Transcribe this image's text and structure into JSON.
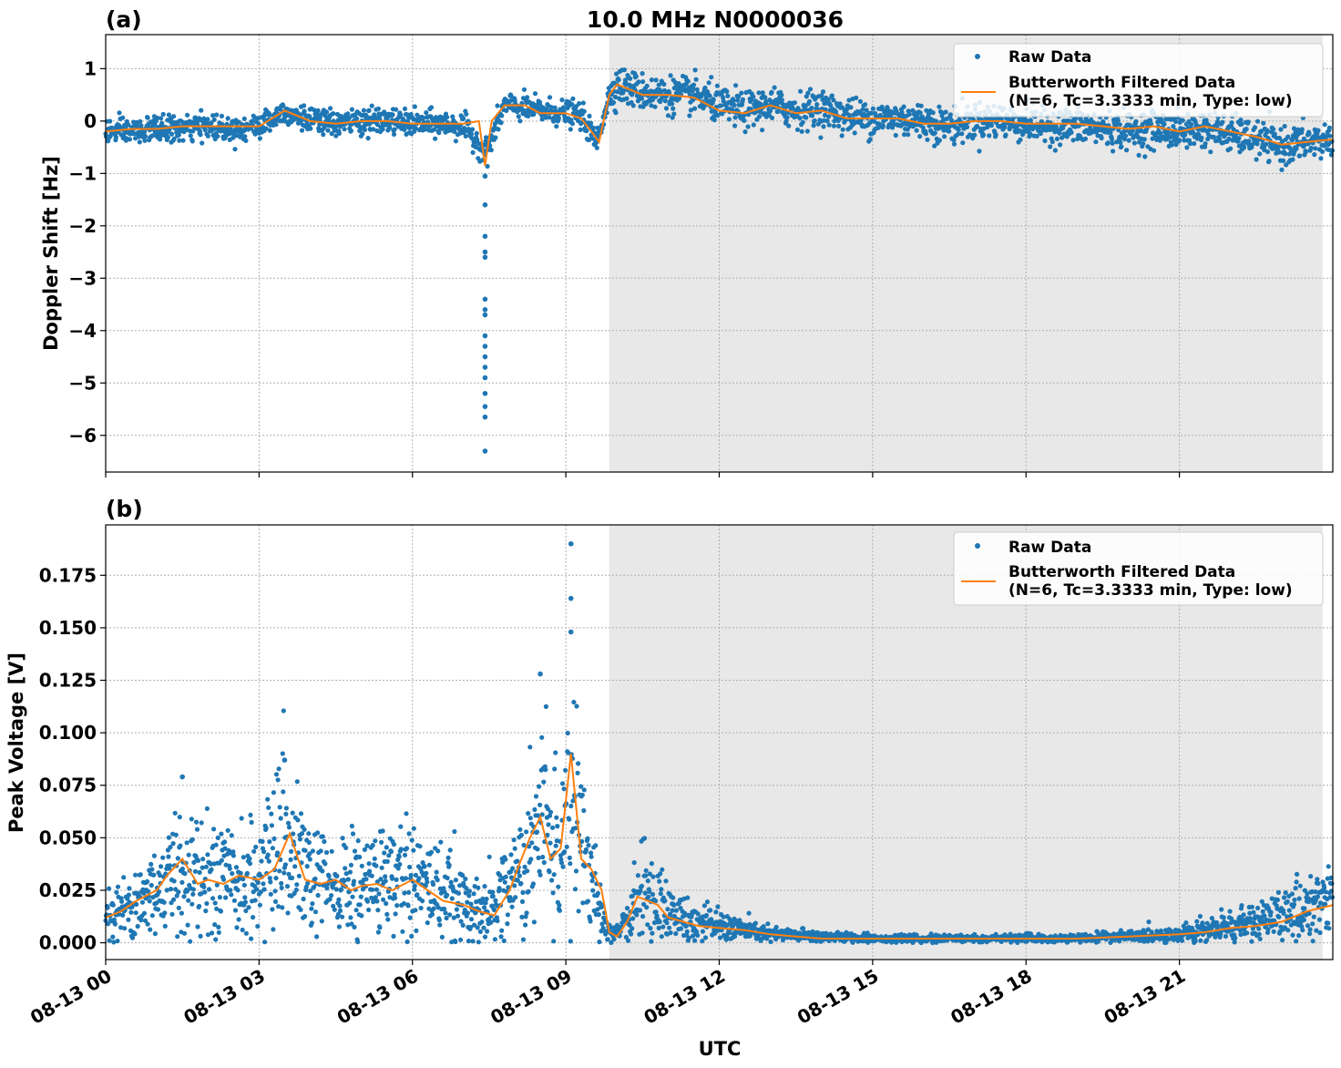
{
  "figure": {
    "title": "10.0 MHz N0000036",
    "xlabel": "UTC"
  },
  "chart_data": [
    {
      "type": "scatter",
      "panel_label": "(a)",
      "title": "10.0 MHz N0000036",
      "ylabel": "Doppler Shift [Hz]",
      "xlabel": "",
      "xlim": [
        0,
        24
      ],
      "ylim": [
        -6.7,
        1.65
      ],
      "yticks": [
        1,
        0,
        -1,
        -2,
        -3,
        -4,
        -5,
        -6
      ],
      "ytick_labels": [
        "1",
        "0",
        "−1",
        "−2",
        "−3",
        "−4",
        "−5",
        "−6"
      ],
      "grid": true,
      "legend_position": "top-right",
      "shaded_region": {
        "x_start": 9.85,
        "x_end": 23.8,
        "color": "#e8e8e8"
      },
      "series": [
        {
          "name": "Raw Data",
          "kind": "scatter",
          "color": "#1f77b4",
          "points": [
            [
              0,
              -0.2
            ],
            [
              0.5,
              -0.2
            ],
            [
              1,
              -0.15
            ],
            [
              1.5,
              -0.15
            ],
            [
              2,
              -0.1
            ],
            [
              2.5,
              -0.15
            ],
            [
              3,
              -0.1
            ],
            [
              3.5,
              0.2
            ],
            [
              4,
              0
            ],
            [
              4.5,
              -0.05
            ],
            [
              5,
              0
            ],
            [
              5.5,
              0
            ],
            [
              6,
              -0.05
            ],
            [
              6.5,
              -0.05
            ],
            [
              7,
              -0.1
            ],
            [
              7.45,
              -0.6
            ],
            [
              7.8,
              0.3
            ],
            [
              8.5,
              0.2
            ],
            [
              9,
              0.15
            ],
            [
              9.3,
              0.1
            ],
            [
              9.6,
              -0.4
            ],
            [
              9.85,
              0.5
            ],
            [
              10,
              0.7
            ],
            [
              10.5,
              0.55
            ],
            [
              11,
              0.5
            ],
            [
              11.5,
              0.5
            ],
            [
              12,
              0.3
            ],
            [
              12.5,
              0.2
            ],
            [
              13,
              0.3
            ],
            [
              13.5,
              0.2
            ],
            [
              14,
              0.25
            ],
            [
              14.5,
              0.1
            ],
            [
              15,
              0.05
            ],
            [
              15.5,
              0.05
            ],
            [
              16,
              0
            ],
            [
              16.5,
              -0.1
            ],
            [
              17,
              0
            ],
            [
              17.5,
              0
            ],
            [
              18,
              -0.05
            ],
            [
              18.5,
              -0.1
            ],
            [
              19,
              -0.1
            ],
            [
              19.5,
              -0.15
            ],
            [
              20,
              -0.2
            ],
            [
              20.5,
              -0.15
            ],
            [
              21,
              -0.2
            ],
            [
              21.5,
              -0.15
            ],
            [
              22,
              -0.25
            ],
            [
              22.5,
              -0.35
            ],
            [
              23,
              -0.5
            ],
            [
              23.5,
              -0.4
            ],
            [
              24,
              -0.35
            ]
          ],
          "outliers": [
            [
              7.42,
              -1.05
            ],
            [
              7.42,
              -1.6
            ],
            [
              7.42,
              -2.2
            ],
            [
              7.42,
              -2.5
            ],
            [
              7.42,
              -2.6
            ],
            [
              7.42,
              -3.4
            ],
            [
              7.42,
              -3.6
            ],
            [
              7.42,
              -3.7
            ],
            [
              7.42,
              -4.1
            ],
            [
              7.42,
              -4.3
            ],
            [
              7.42,
              -4.5
            ],
            [
              7.42,
              -4.7
            ],
            [
              7.42,
              -4.9
            ],
            [
              7.42,
              -5.2
            ],
            [
              7.42,
              -5.45
            ],
            [
              7.42,
              -5.65
            ],
            [
              7.42,
              -6.3
            ]
          ]
        },
        {
          "name": "Butterworth Filtered Data\n(N=6, Tc=3.3333 min, Type: low)",
          "kind": "line",
          "color": "#ff7f0e",
          "x": [
            0,
            0.5,
            1,
            1.5,
            2,
            2.5,
            3,
            3.5,
            4,
            4.5,
            5,
            5.5,
            6,
            6.5,
            7,
            7.3,
            7.42,
            7.55,
            7.8,
            8.2,
            8.5,
            9,
            9.3,
            9.5,
            9.65,
            9.85,
            10,
            10.5,
            11,
            11.5,
            12,
            12.5,
            13,
            13.5,
            14,
            14.5,
            15,
            15.5,
            16,
            16.5,
            17,
            17.5,
            18,
            18.5,
            19,
            19.5,
            20,
            20.5,
            21,
            21.5,
            22,
            22.5,
            23,
            23.5,
            24
          ],
          "y": [
            -0.2,
            -0.15,
            -0.15,
            -0.1,
            -0.1,
            -0.1,
            -0.1,
            0.2,
            0,
            -0.05,
            0,
            0,
            -0.05,
            -0.05,
            -0.05,
            0,
            -0.85,
            0.0,
            0.3,
            0.3,
            0.15,
            0.15,
            0.05,
            -0.2,
            -0.4,
            0.5,
            0.7,
            0.5,
            0.5,
            0.45,
            0.2,
            0.15,
            0.3,
            0.15,
            0.2,
            0.05,
            0.05,
            0.05,
            -0.05,
            -0.05,
            0,
            0,
            -0.05,
            -0.05,
            -0.05,
            -0.1,
            -0.15,
            -0.1,
            -0.2,
            -0.1,
            -0.2,
            -0.3,
            -0.45,
            -0.4,
            -0.35
          ]
        }
      ]
    },
    {
      "type": "scatter",
      "panel_label": "(b)",
      "ylabel": "Peak Voltage [V]",
      "xlabel": "UTC",
      "xlim": [
        0,
        24
      ],
      "ylim": [
        -0.008,
        0.199
      ],
      "yticks": [
        0.0,
        0.025,
        0.05,
        0.075,
        0.1,
        0.125,
        0.15,
        0.175
      ],
      "ytick_labels": [
        "0.000",
        "0.025",
        "0.050",
        "0.075",
        "0.100",
        "0.125",
        "0.150",
        "0.175"
      ],
      "xticks": [
        0,
        3,
        6,
        9,
        12,
        15,
        18,
        21
      ],
      "xtick_labels": [
        "08-13 00",
        "08-13 03",
        "08-13 06",
        "08-13 09",
        "08-13 12",
        "08-13 15",
        "08-13 18",
        "08-13 21"
      ],
      "grid": true,
      "legend_position": "top-right",
      "shaded_region": {
        "x_start": 9.85,
        "x_end": 23.8,
        "color": "#e8e8e8"
      },
      "series": [
        {
          "name": "Raw Data",
          "kind": "scatter",
          "color": "#1f77b4",
          "points": [
            [
              0,
              0.012
            ],
            [
              0.5,
              0.018
            ],
            [
              1,
              0.025
            ],
            [
              1.5,
              0.035
            ],
            [
              2,
              0.03
            ],
            [
              2.5,
              0.028
            ],
            [
              3,
              0.03
            ],
            [
              3.5,
              0.045
            ],
            [
              4,
              0.03
            ],
            [
              4.5,
              0.025
            ],
            [
              5,
              0.028
            ],
            [
              5.5,
              0.03
            ],
            [
              6,
              0.03
            ],
            [
              6.5,
              0.025
            ],
            [
              7,
              0.02
            ],
            [
              7.5,
              0.015
            ],
            [
              8,
              0.03
            ],
            [
              8.3,
              0.045
            ],
            [
              8.6,
              0.06
            ],
            [
              8.9,
              0.04
            ],
            [
              9.1,
              0.08
            ],
            [
              9.3,
              0.045
            ],
            [
              9.55,
              0.03
            ],
            [
              9.75,
              0.01
            ],
            [
              9.9,
              0.004
            ],
            [
              10.2,
              0.01
            ],
            [
              10.5,
              0.025
            ],
            [
              10.8,
              0.02
            ],
            [
              11,
              0.015
            ],
            [
              11.5,
              0.01
            ],
            [
              12,
              0.008
            ],
            [
              12.5,
              0.006
            ],
            [
              13,
              0.004
            ],
            [
              14,
              0.003
            ],
            [
              15,
              0.002
            ],
            [
              16,
              0.002
            ],
            [
              17,
              0.002
            ],
            [
              18,
              0.002
            ],
            [
              19,
              0.002
            ],
            [
              20,
              0.003
            ],
            [
              21,
              0.004
            ],
            [
              21.5,
              0.006
            ],
            [
              22,
              0.008
            ],
            [
              22.5,
              0.01
            ],
            [
              23,
              0.012
            ],
            [
              23.5,
              0.018
            ],
            [
              24,
              0.022
            ]
          ],
          "outliers": [
            [
              1.5,
              0.079
            ],
            [
              3.5,
              0.087
            ],
            [
              8.5,
              0.128
            ],
            [
              9.1,
              0.19
            ],
            [
              9.1,
              0.164
            ],
            [
              9.1,
              0.148
            ]
          ]
        },
        {
          "name": "Butterworth Filtered Data\n(N=6, Tc=3.3333 min, Type: low)",
          "kind": "line",
          "color": "#ff7f0e",
          "x": [
            0,
            0.3,
            0.6,
            1,
            1.2,
            1.5,
            1.8,
            2,
            2.3,
            2.6,
            3,
            3.3,
            3.6,
            3.9,
            4.2,
            4.5,
            4.8,
            5,
            5.3,
            5.6,
            6,
            6.3,
            6.6,
            7,
            7.3,
            7.6,
            7.9,
            8.1,
            8.3,
            8.5,
            8.7,
            8.9,
            9.1,
            9.3,
            9.5,
            9.7,
            9.85,
            10,
            10.2,
            10.4,
            10.6,
            10.8,
            11,
            11.3,
            11.6,
            12,
            12.5,
            13,
            13.5,
            14,
            15,
            16,
            17,
            18,
            19,
            20,
            21,
            21.5,
            22,
            22.5,
            23,
            23.5,
            24
          ],
          "y": [
            0.012,
            0.015,
            0.02,
            0.025,
            0.032,
            0.04,
            0.028,
            0.03,
            0.028,
            0.032,
            0.03,
            0.035,
            0.052,
            0.03,
            0.028,
            0.03,
            0.025,
            0.027,
            0.028,
            0.025,
            0.03,
            0.025,
            0.02,
            0.018,
            0.015,
            0.013,
            0.025,
            0.038,
            0.05,
            0.06,
            0.04,
            0.045,
            0.09,
            0.04,
            0.035,
            0.025,
            0.005,
            0.003,
            0.01,
            0.022,
            0.02,
            0.018,
            0.012,
            0.01,
            0.008,
            0.007,
            0.006,
            0.004,
            0.003,
            0.002,
            0.002,
            0.002,
            0.002,
            0.002,
            0.002,
            0.003,
            0.004,
            0.005,
            0.007,
            0.008,
            0.01,
            0.015,
            0.018
          ]
        }
      ]
    }
  ]
}
